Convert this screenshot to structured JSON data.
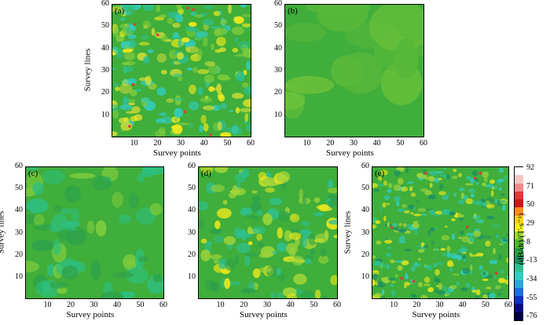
{
  "chart_data": [
    {
      "type": "heatmap",
      "panel_label": "(a)",
      "xlabel": "Survey points",
      "ylabel": "Survey lines",
      "xlim": [
        0,
        60
      ],
      "ylim": [
        0,
        60
      ],
      "xticks": [
        "10",
        "20",
        "30",
        "40",
        "50",
        "60"
      ],
      "yticks": [
        "10",
        "20",
        "30",
        "40",
        "50",
        "60"
      ]
    },
    {
      "type": "heatmap",
      "panel_label": "(b)",
      "xlabel": "Survey points",
      "ylabel": "",
      "xlim": [
        0,
        60
      ],
      "ylim": [
        0,
        60
      ],
      "xticks": [
        "10",
        "20",
        "30",
        "40",
        "50",
        "60"
      ],
      "yticks": [
        "10",
        "20",
        "30",
        "40",
        "50",
        "60"
      ]
    },
    {
      "type": "heatmap",
      "panel_label": "(c)",
      "xlabel": "Survey points",
      "ylabel": "Survey lines",
      "xlim": [
        0,
        60
      ],
      "ylim": [
        0,
        60
      ],
      "xticks": [
        "10",
        "20",
        "30",
        "40",
        "50",
        "60"
      ],
      "yticks": [
        "10",
        "20",
        "30",
        "40",
        "50",
        "60"
      ]
    },
    {
      "type": "heatmap",
      "panel_label": "(d)",
      "xlabel": "Survey points",
      "ylabel": "",
      "xlim": [
        0,
        60
      ],
      "ylim": [
        0,
        60
      ],
      "xticks": [
        "10",
        "20",
        "30",
        "40",
        "50",
        "60"
      ],
      "yticks": [
        "10",
        "20",
        "30",
        "40",
        "50",
        "60"
      ]
    },
    {
      "type": "heatmap",
      "panel_label": "(e)",
      "xlabel": "Survey points",
      "ylabel": "Survey lines",
      "xlim": [
        0,
        60
      ],
      "ylim": [
        0,
        60
      ],
      "xticks": [
        "10",
        "20",
        "30",
        "40",
        "50",
        "60"
      ],
      "yticks": [
        "10",
        "20",
        "30",
        "40",
        "50",
        "60"
      ]
    }
  ],
  "colorbar": {
    "label": "(dB/dt)/(T·s⁻¹)",
    "ticks": [
      "92",
      "71",
      "50",
      "29",
      "8",
      "-13",
      "-34",
      "-55",
      "-76"
    ],
    "colors": [
      "#ffffff",
      "#f2c6c6",
      "#f08a8a",
      "#e03a3a",
      "#c71818",
      "#ff8c1a",
      "#ffd11a",
      "#f3f01c",
      "#9bd62a",
      "#4fb82b",
      "#2ea043",
      "#1e9060",
      "#2fbf8f",
      "#33ccc0",
      "#2aa6d8",
      "#1b6fe0",
      "#1030c0",
      "#0a0a80",
      "#000040"
    ]
  }
}
